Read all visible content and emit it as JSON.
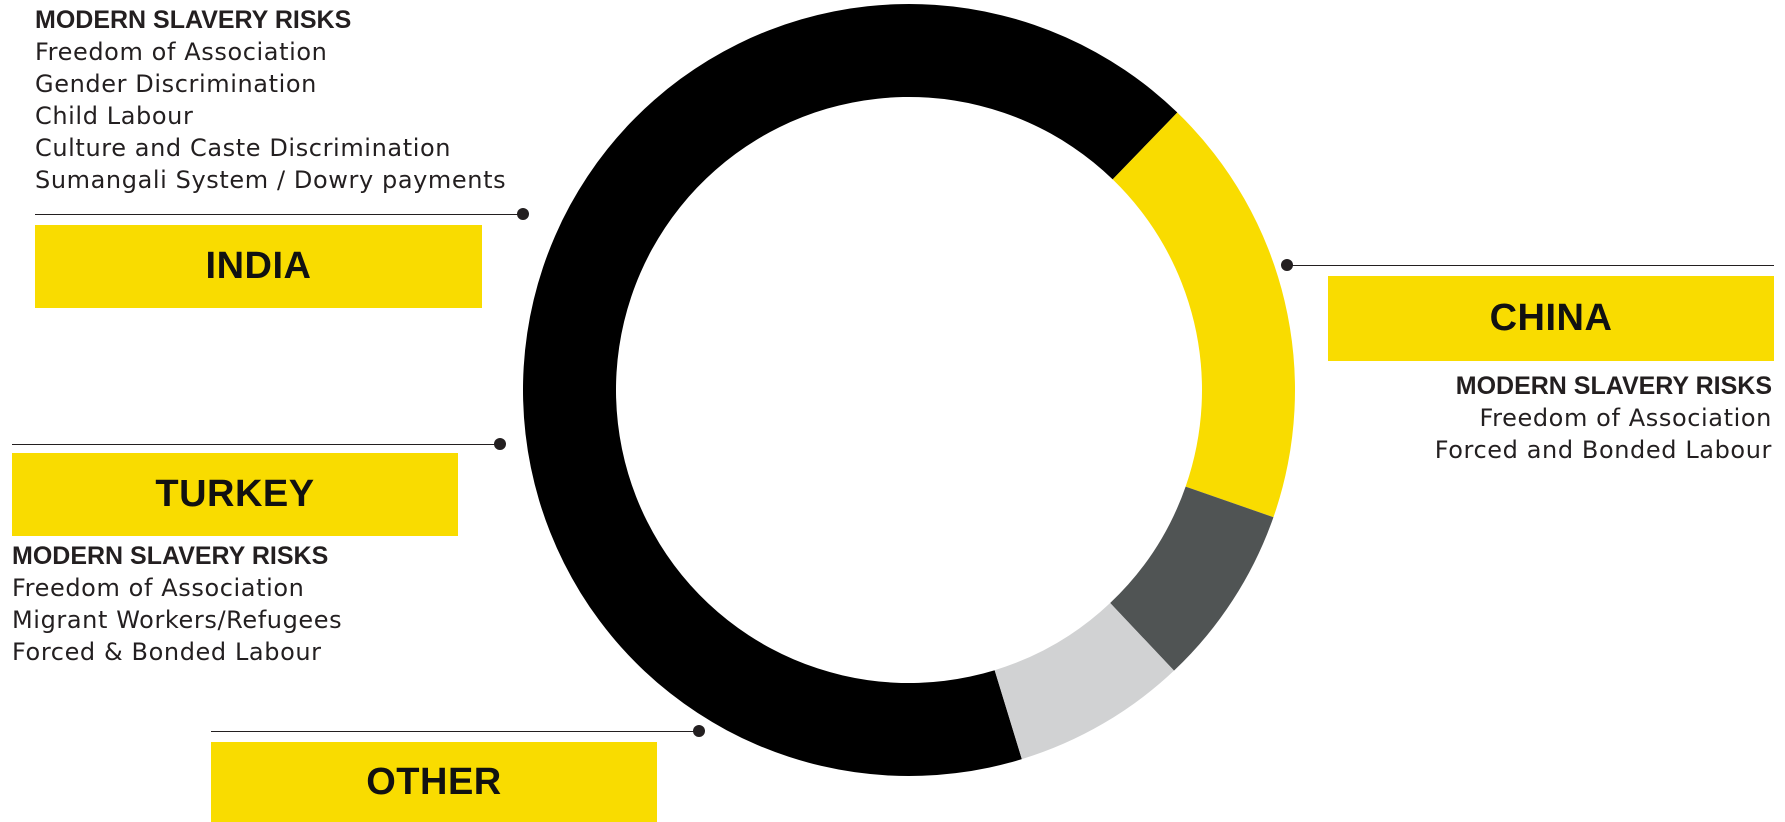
{
  "colors": {
    "china": "#000000",
    "other": "#f9dc00",
    "turkey": "#505454",
    "india": "#d1d2d3",
    "label_box": "#f9dc00",
    "text": "#231f20"
  },
  "chart_data": {
    "type": "pie",
    "style": "donut",
    "legend": "callout labels",
    "slices": [
      {
        "label": "CHINA",
        "value": 69.5,
        "color": "#000000"
      },
      {
        "label": "OTHER",
        "value": 18.8,
        "color": "#f9dc00"
      },
      {
        "label": "TURKEY",
        "value": 7.9,
        "color": "#505454"
      },
      {
        "label": "INDIA",
        "value": 7.6,
        "color": "#d1d2d3"
      }
    ]
  },
  "countries": {
    "india": {
      "name": "INDIA",
      "risks_heading": "MODERN SLAVERY RISKS",
      "risks": [
        "Freedom of Association",
        "Gender Discrimination",
        "Child Labour",
        "Culture and Caste Discrimination",
        "Sumangali System / Dowry payments"
      ]
    },
    "china": {
      "name": "CHINA",
      "risks_heading": "MODERN SLAVERY RISKS",
      "risks": [
        "Freedom of Association",
        "Forced and Bonded Labour"
      ]
    },
    "turkey": {
      "name": "TURKEY",
      "risks_heading": "MODERN SLAVERY RISKS",
      "risks": [
        "Freedom of Association",
        "Migrant Workers/Refugees",
        "Forced & Bonded Labour"
      ]
    },
    "other": {
      "name": "OTHER"
    }
  }
}
